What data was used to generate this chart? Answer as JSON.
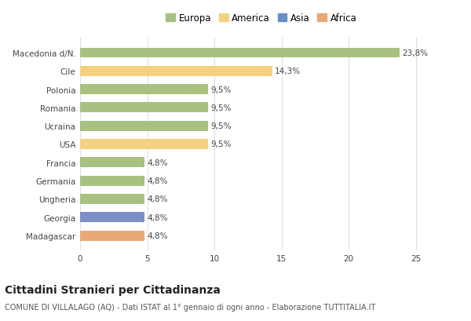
{
  "categories": [
    "Macedonia d/N.",
    "Cile",
    "Polonia",
    "Romania",
    "Ucraina",
    "USA",
    "Francia",
    "Germania",
    "Ungheria",
    "Georgia",
    "Madagascar"
  ],
  "values": [
    23.8,
    14.3,
    9.5,
    9.5,
    9.5,
    9.5,
    4.8,
    4.8,
    4.8,
    4.8,
    4.8
  ],
  "labels": [
    "23,8%",
    "14,3%",
    "9,5%",
    "9,5%",
    "9,5%",
    "9,5%",
    "4,8%",
    "4,8%",
    "4,8%",
    "4,8%",
    "4,8%"
  ],
  "colors": [
    "#a8c080",
    "#f5d080",
    "#a8c080",
    "#a8c080",
    "#a8c080",
    "#f5d080",
    "#a8c080",
    "#a8c080",
    "#a8c080",
    "#7b90c4",
    "#e8a878"
  ],
  "legend_labels": [
    "Europa",
    "America",
    "Asia",
    "Africa"
  ],
  "legend_colors": [
    "#a8c080",
    "#f5d080",
    "#6b8ec4",
    "#e8a878"
  ],
  "title": "Cittadini Stranieri per Cittadinanza",
  "subtitle": "COMUNE DI VILLALAGO (AQ) - Dati ISTAT al 1° gennaio di ogni anno - Elaborazione TUTTITALIA.IT",
  "xlim": [
    0,
    27
  ],
  "xticks": [
    0,
    5,
    10,
    15,
    20,
    25
  ],
  "background_color": "#ffffff",
  "grid_color": "#e0e0e0",
  "bar_height": 0.55,
  "title_fontsize": 10,
  "subtitle_fontsize": 7,
  "label_fontsize": 7.5,
  "tick_fontsize": 7.5,
  "legend_fontsize": 8.5
}
